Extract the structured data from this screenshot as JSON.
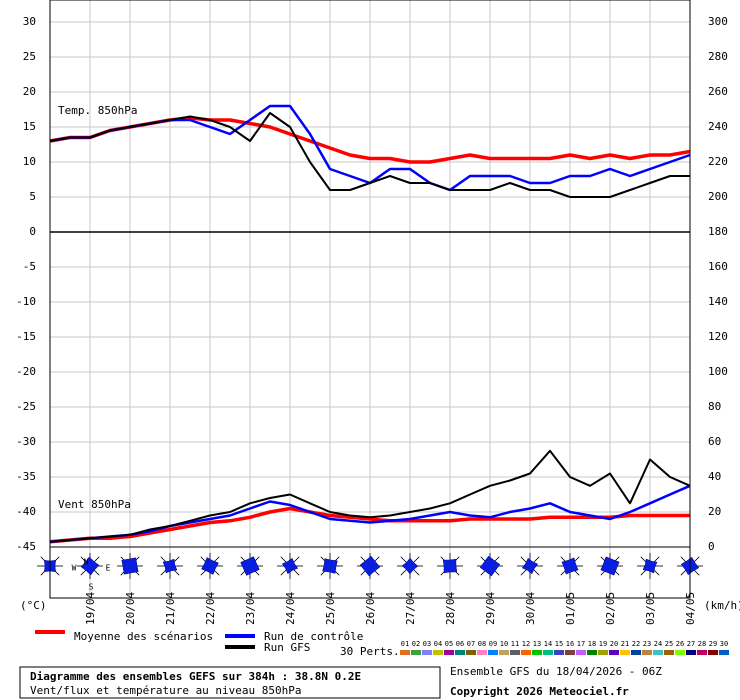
{
  "chart_data": {
    "type": "line",
    "panel_labels": [
      "Temp. 850hPa",
      "Vent 850hPa"
    ],
    "y_unit": "(°C)",
    "y2_unit": "(km/h)",
    "compass": [
      "N",
      "W",
      "E",
      "S"
    ],
    "x": [
      0,
      12,
      24,
      36,
      48,
      60,
      72,
      84,
      96,
      108,
      120,
      132,
      144,
      156,
      168,
      180,
      192,
      204,
      216,
      228,
      240,
      252,
      264,
      276,
      288,
      300,
      312,
      324,
      336,
      348,
      360,
      372,
      384
    ],
    "xlim": [
      0,
      384
    ],
    "xticks": [
      {
        "value": 24,
        "label": "19/04"
      },
      {
        "value": 48,
        "label": "20/04"
      },
      {
        "value": 72,
        "label": "21/04"
      },
      {
        "value": 96,
        "label": "22/04"
      },
      {
        "value": 120,
        "label": "23/04"
      },
      {
        "value": 144,
        "label": "24/04"
      },
      {
        "value": 168,
        "label": "25/04"
      },
      {
        "value": 192,
        "label": "26/04"
      },
      {
        "value": 216,
        "label": "27/04"
      },
      {
        "value": 240,
        "label": "28/04"
      },
      {
        "value": 264,
        "label": "29/04"
      },
      {
        "value": 288,
        "label": "30/04"
      },
      {
        "value": 312,
        "label": "01/05"
      },
      {
        "value": 336,
        "label": "02/05"
      },
      {
        "value": 360,
        "label": "03/05"
      },
      {
        "value": 384,
        "label": "04/05"
      }
    ],
    "ylim": [
      -45,
      30
    ],
    "yticks": [
      30,
      25,
      20,
      15,
      10,
      5,
      0,
      -5,
      -10,
      -15,
      -20,
      -25,
      -30,
      -35,
      -40,
      -45
    ],
    "y2lim": [
      0,
      300
    ],
    "y2ticks": [
      300,
      280,
      260,
      240,
      220,
      200,
      180,
      160,
      140,
      120,
      100,
      80,
      60,
      40,
      20,
      0
    ],
    "grid": true,
    "series": [
      {
        "name": "Moyenne des scénarios",
        "color": "#ff0000",
        "values": [
          13,
          13.5,
          13.5,
          14.5,
          15,
          15.5,
          16,
          16.3,
          16,
          16,
          15.5,
          15,
          14,
          13,
          12,
          11,
          10.5,
          10.5,
          10,
          10,
          10.5,
          11,
          10.5,
          10.5,
          10.5,
          10.5,
          11,
          10.5,
          11,
          10.5,
          11,
          11,
          11.5
        ]
      },
      {
        "name": "Run de contrôle",
        "color": "#0000ff",
        "values": [
          13,
          13.5,
          13.5,
          14.5,
          15,
          15.5,
          16,
          16,
          15,
          14,
          16,
          18,
          18,
          14,
          9,
          8,
          7,
          9,
          9,
          7,
          6,
          8,
          8,
          8,
          7,
          7,
          8,
          8,
          9,
          8,
          9,
          10,
          11
        ]
      },
      {
        "name": "Run GFS",
        "color": "#000000",
        "values": [
          13,
          13.5,
          13.5,
          14.5,
          15,
          15.5,
          16,
          16.5,
          16,
          15,
          13,
          17,
          15,
          10,
          6,
          6,
          7,
          8,
          7,
          7,
          6,
          6,
          6,
          7,
          6,
          6,
          5,
          5,
          5,
          6,
          7,
          8,
          8
        ]
      },
      {
        "name": "Moyenne des scénarios",
        "color": "#ff0000",
        "axis": "y2",
        "values": [
          3,
          4,
          5,
          5,
          6,
          8,
          10,
          12,
          14,
          15,
          17,
          20,
          22,
          20,
          18,
          17,
          16,
          15,
          15,
          15,
          15,
          16,
          16,
          16,
          16,
          17,
          17,
          17,
          17,
          18,
          18,
          18,
          18
        ]
      },
      {
        "name": "Run de contrôle",
        "color": "#0000ff",
        "axis": "y2",
        "values": [
          3,
          4,
          5,
          6,
          7,
          9,
          12,
          14,
          16,
          18,
          22,
          26,
          24,
          20,
          16,
          15,
          14,
          15,
          16,
          18,
          20,
          18,
          17,
          20,
          22,
          25,
          20,
          18,
          16,
          20,
          25,
          30,
          35
        ]
      },
      {
        "name": "Run GFS",
        "color": "#000000",
        "axis": "y2",
        "values": [
          3,
          4,
          5,
          6,
          7,
          10,
          12,
          15,
          18,
          20,
          25,
          28,
          30,
          25,
          20,
          18,
          17,
          18,
          20,
          22,
          25,
          30,
          35,
          38,
          42,
          55,
          40,
          35,
          42,
          25,
          50,
          40,
          35
        ]
      }
    ],
    "perturbations_label": "30 Perts.",
    "perturbations": [
      {
        "name": "01",
        "color": "#e07020"
      },
      {
        "name": "02",
        "color": "#40a040"
      },
      {
        "name": "03",
        "color": "#8080ff"
      },
      {
        "name": "04",
        "color": "#c0c000"
      },
      {
        "name": "05",
        "color": "#a000a0"
      },
      {
        "name": "06",
        "color": "#008080"
      },
      {
        "name": "07",
        "color": "#806000"
      },
      {
        "name": "08",
        "color": "#ff80c0"
      },
      {
        "name": "09",
        "color": "#0080ff"
      },
      {
        "name": "10",
        "color": "#c0a060"
      },
      {
        "name": "11",
        "color": "#606060"
      },
      {
        "name": "12",
        "color": "#ff6000"
      },
      {
        "name": "13",
        "color": "#00c000"
      },
      {
        "name": "14",
        "color": "#00c080"
      },
      {
        "name": "15",
        "color": "#4040c0"
      },
      {
        "name": "16",
        "color": "#804040"
      },
      {
        "name": "17",
        "color": "#c060ff"
      },
      {
        "name": "18",
        "color": "#008000"
      },
      {
        "name": "19",
        "color": "#a0a000"
      },
      {
        "name": "20",
        "color": "#6000c0"
      },
      {
        "name": "21",
        "color": "#ffc000"
      },
      {
        "name": "22",
        "color": "#0040a0"
      },
      {
        "name": "23",
        "color": "#c08040"
      },
      {
        "name": "24",
        "color": "#40c0c0"
      },
      {
        "name": "25",
        "color": "#a06000"
      },
      {
        "name": "26",
        "color": "#80ff00"
      },
      {
        "name": "27",
        "color": "#000080"
      },
      {
        "name": "28",
        "color": "#c00060"
      },
      {
        "name": "29",
        "color": "#800000"
      },
      {
        "name": "30",
        "color": "#0060c0"
      }
    ]
  },
  "footer": {
    "title": "Diagramme des ensembles GEFS sur 384h : 38.8N 0.2E",
    "subtitle": "Vent/flux et température au niveau 850hPa",
    "run": "Ensemble GFS du 18/04/2026 - 06Z",
    "copyright": "Copyright 2026 Meteociel.fr"
  }
}
